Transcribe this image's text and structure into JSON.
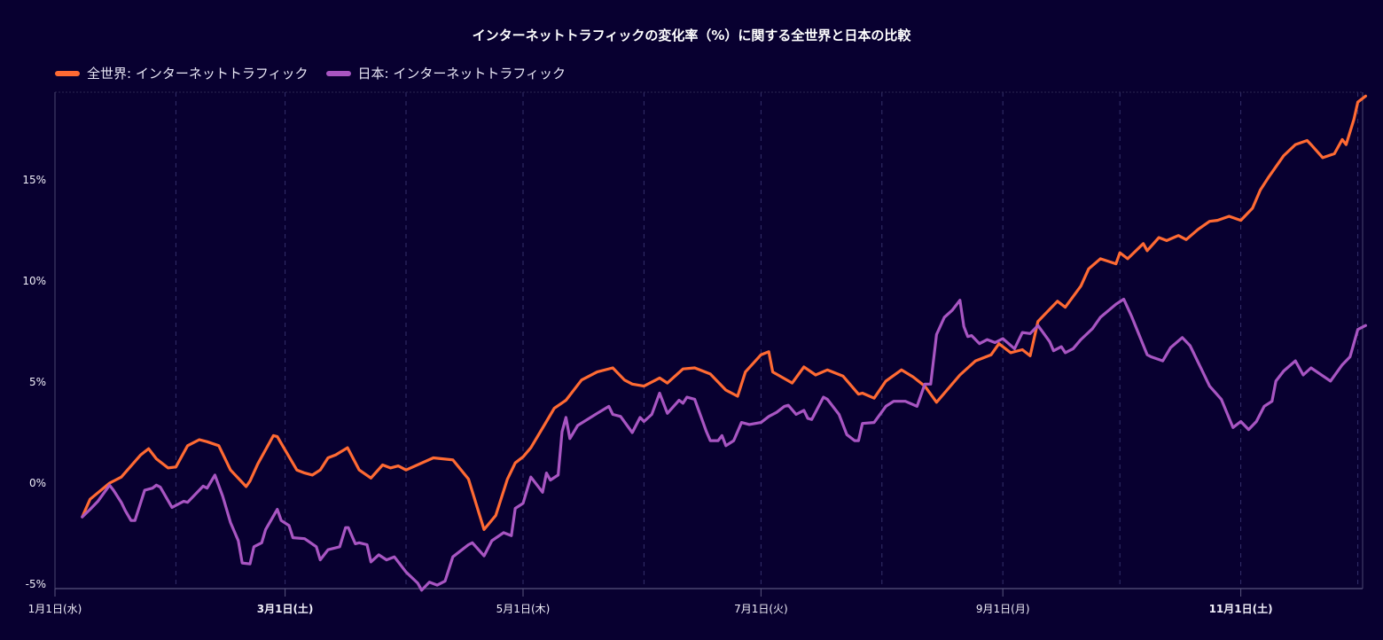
{
  "chart_data": {
    "type": "line",
    "title": "インターネットトラフィックの変化率（%）に関する全世界と日本の比較",
    "xlabel": "",
    "ylabel": "",
    "x_unit": "day of year (0 = 1月1日)",
    "xlim": [
      0,
      336
    ],
    "ylim": [
      -5.2,
      19.3
    ],
    "y_ticks": [
      {
        "value": -5,
        "label": "-5%"
      },
      {
        "value": 0,
        "label": "0%"
      },
      {
        "value": 5,
        "label": "5%"
      },
      {
        "value": 10,
        "label": "10%"
      },
      {
        "value": 15,
        "label": "15%"
      }
    ],
    "x_ticks": [
      {
        "day": 0,
        "label": "1月1日(水)",
        "bold": false
      },
      {
        "day": 59,
        "label": "3月1日(土)",
        "bold": true
      },
      {
        "day": 120,
        "label": "5月1日(木)",
        "bold": false
      },
      {
        "day": 181,
        "label": "7月1日(火)",
        "bold": false
      },
      {
        "day": 243,
        "label": "9月1日(月)",
        "bold": false
      },
      {
        "day": 304,
        "label": "11月1日(土)",
        "bold": true
      }
    ],
    "month_grid_days": [
      31,
      59,
      90,
      120,
      151,
      181,
      212,
      243,
      273,
      304,
      334
    ],
    "grid": "vertical-dashed",
    "legend_position": "top-left",
    "series": [
      {
        "name": "全世界: インターネットトラフィック",
        "color": "#ff6a33",
        "points": [
          [
            7,
            -1.67
          ],
          [
            9,
            -0.8
          ],
          [
            14,
            0
          ],
          [
            17,
            0.3
          ],
          [
            22,
            1.4
          ],
          [
            24,
            1.7
          ],
          [
            26,
            1.2
          ],
          [
            29,
            0.75
          ],
          [
            31,
            0.8
          ],
          [
            34,
            1.85
          ],
          [
            37,
            2.15
          ],
          [
            39,
            2.05
          ],
          [
            42,
            1.85
          ],
          [
            45,
            0.65
          ],
          [
            49,
            -0.17
          ],
          [
            50,
            0.1
          ],
          [
            52,
            0.95
          ],
          [
            56,
            2.35
          ],
          [
            57,
            2.3
          ],
          [
            62,
            0.65
          ],
          [
            64,
            0.5
          ],
          [
            66,
            0.4
          ],
          [
            68,
            0.65
          ],
          [
            70,
            1.25
          ],
          [
            72,
            1.4
          ],
          [
            75,
            1.75
          ],
          [
            78,
            0.65
          ],
          [
            81,
            0.25
          ],
          [
            84,
            0.9
          ],
          [
            86,
            0.75
          ],
          [
            88,
            0.85
          ],
          [
            90,
            0.65
          ],
          [
            97,
            1.25
          ],
          [
            102,
            1.15
          ],
          [
            106,
            0.2
          ],
          [
            110,
            -2.3
          ],
          [
            113,
            -1.6
          ],
          [
            116,
            0.2
          ],
          [
            118,
            1.0
          ],
          [
            120,
            1.3
          ],
          [
            122,
            1.75
          ],
          [
            126,
            3.05
          ],
          [
            128,
            3.7
          ],
          [
            131,
            4.1
          ],
          [
            135,
            5.1
          ],
          [
            139,
            5.5
          ],
          [
            143,
            5.7
          ],
          [
            146,
            5.1
          ],
          [
            148,
            4.9
          ],
          [
            151,
            4.8
          ],
          [
            155,
            5.2
          ],
          [
            157,
            4.95
          ],
          [
            161,
            5.65
          ],
          [
            164,
            5.7
          ],
          [
            168,
            5.4
          ],
          [
            172,
            4.6
          ],
          [
            175,
            4.3
          ],
          [
            177,
            5.5
          ],
          [
            181,
            6.35
          ],
          [
            183,
            6.5
          ],
          [
            184,
            5.5
          ],
          [
            189,
            4.95
          ],
          [
            192,
            5.75
          ],
          [
            195,
            5.35
          ],
          [
            198,
            5.6
          ],
          [
            202,
            5.3
          ],
          [
            206,
            4.4
          ],
          [
            207,
            4.45
          ],
          [
            210,
            4.2
          ],
          [
            213,
            5.05
          ],
          [
            217,
            5.6
          ],
          [
            220,
            5.25
          ],
          [
            223,
            4.8
          ],
          [
            226,
            4.0
          ],
          [
            232,
            5.35
          ],
          [
            236,
            6.05
          ],
          [
            240,
            6.35
          ],
          [
            242,
            6.9
          ],
          [
            245,
            6.45
          ],
          [
            248,
            6.6
          ],
          [
            250,
            6.3
          ],
          [
            252,
            8.0
          ],
          [
            257,
            9.0
          ],
          [
            259,
            8.7
          ],
          [
            263,
            9.75
          ],
          [
            265,
            10.6
          ],
          [
            268,
            11.1
          ],
          [
            272,
            10.85
          ],
          [
            273,
            11.4
          ],
          [
            275,
            11.1
          ],
          [
            279,
            11.85
          ],
          [
            280,
            11.5
          ],
          [
            283,
            12.15
          ],
          [
            285,
            12.0
          ],
          [
            288,
            12.25
          ],
          [
            290,
            12.05
          ],
          [
            293,
            12.55
          ],
          [
            296,
            12.95
          ],
          [
            298,
            13.0
          ],
          [
            301,
            13.2
          ],
          [
            304,
            13.0
          ],
          [
            307,
            13.6
          ],
          [
            309,
            14.5
          ],
          [
            311,
            15.1
          ],
          [
            315,
            16.2
          ],
          [
            318,
            16.75
          ],
          [
            321,
            16.95
          ],
          [
            322,
            16.75
          ],
          [
            325,
            16.1
          ],
          [
            328,
            16.3
          ],
          [
            330,
            17.0
          ],
          [
            331,
            16.75
          ],
          [
            333,
            18.0
          ],
          [
            334,
            18.85
          ],
          [
            336,
            19.15
          ]
        ]
      },
      {
        "name": "日本: インターネットトラフィック",
        "color": "#a855c2",
        "points": [
          [
            7,
            -1.67
          ],
          [
            9,
            -1.3
          ],
          [
            11,
            -0.9
          ],
          [
            14,
            -0.1
          ],
          [
            15,
            -0.35
          ],
          [
            17,
            -0.95
          ],
          [
            18,
            -1.35
          ],
          [
            19.5,
            -1.85
          ],
          [
            20.5,
            -1.85
          ],
          [
            23,
            -0.35
          ],
          [
            25,
            -0.25
          ],
          [
            26,
            -0.1
          ],
          [
            27,
            -0.2
          ],
          [
            30,
            -1.2
          ],
          [
            33,
            -0.9
          ],
          [
            34,
            -0.95
          ],
          [
            38,
            -0.15
          ],
          [
            39,
            -0.25
          ],
          [
            41,
            0.4
          ],
          [
            43,
            -0.65
          ],
          [
            45,
            -1.95
          ],
          [
            47,
            -2.85
          ],
          [
            48,
            -3.95
          ],
          [
            50,
            -4.0
          ],
          [
            51,
            -3.15
          ],
          [
            53,
            -2.95
          ],
          [
            54,
            -2.3
          ],
          [
            57,
            -1.3
          ],
          [
            58,
            -1.85
          ],
          [
            60,
            -2.1
          ],
          [
            61,
            -2.7
          ],
          [
            64,
            -2.75
          ],
          [
            67,
            -3.15
          ],
          [
            68,
            -3.8
          ],
          [
            70,
            -3.3
          ],
          [
            73,
            -3.15
          ],
          [
            74.5,
            -2.2
          ],
          [
            75.2,
            -2.2
          ],
          [
            77,
            -3.0
          ],
          [
            78,
            -2.95
          ],
          [
            80,
            -3.05
          ],
          [
            81,
            -3.9
          ],
          [
            83,
            -3.55
          ],
          [
            85,
            -3.8
          ],
          [
            87,
            -3.65
          ],
          [
            90,
            -4.4
          ],
          [
            93,
            -4.95
          ],
          [
            94,
            -5.3
          ],
          [
            96,
            -4.9
          ],
          [
            98,
            -5.05
          ],
          [
            100,
            -4.85
          ],
          [
            102,
            -3.65
          ],
          [
            106,
            -3.05
          ],
          [
            107,
            -2.95
          ],
          [
            110,
            -3.6
          ],
          [
            112,
            -2.85
          ],
          [
            115,
            -2.45
          ],
          [
            117,
            -2.6
          ],
          [
            118,
            -1.25
          ],
          [
            120,
            -1.0
          ],
          [
            122,
            0.3
          ],
          [
            125,
            -0.45
          ],
          [
            126,
            0.5
          ],
          [
            127,
            0.15
          ],
          [
            129,
            0.4
          ],
          [
            130,
            2.55
          ],
          [
            131,
            3.25
          ],
          [
            132,
            2.2
          ],
          [
            134,
            2.85
          ],
          [
            139,
            3.45
          ],
          [
            142,
            3.8
          ],
          [
            143,
            3.4
          ],
          [
            145,
            3.3
          ],
          [
            148,
            2.5
          ],
          [
            150,
            3.25
          ],
          [
            151,
            3.05
          ],
          [
            153,
            3.4
          ],
          [
            155,
            4.45
          ],
          [
            157,
            3.45
          ],
          [
            160,
            4.1
          ],
          [
            161,
            3.95
          ],
          [
            162,
            4.25
          ],
          [
            164,
            4.15
          ],
          [
            167,
            2.55
          ],
          [
            168,
            2.1
          ],
          [
            170,
            2.1
          ],
          [
            171,
            2.35
          ],
          [
            172,
            1.85
          ],
          [
            174,
            2.1
          ],
          [
            176,
            3.0
          ],
          [
            178,
            2.9
          ],
          [
            181,
            3.0
          ],
          [
            183,
            3.3
          ],
          [
            185,
            3.5
          ],
          [
            187,
            3.8
          ],
          [
            188,
            3.85
          ],
          [
            190,
            3.4
          ],
          [
            192,
            3.6
          ],
          [
            193,
            3.2
          ],
          [
            194,
            3.15
          ],
          [
            197,
            4.25
          ],
          [
            198,
            4.15
          ],
          [
            201,
            3.4
          ],
          [
            203,
            2.4
          ],
          [
            205,
            2.1
          ],
          [
            206,
            2.1
          ],
          [
            207,
            2.95
          ],
          [
            210,
            3.0
          ],
          [
            213,
            3.8
          ],
          [
            215,
            4.05
          ],
          [
            218,
            4.05
          ],
          [
            221,
            3.8
          ],
          [
            223,
            4.9
          ],
          [
            224.5,
            4.9
          ],
          [
            226,
            7.35
          ],
          [
            228,
            8.2
          ],
          [
            230,
            8.55
          ],
          [
            232,
            9.05
          ],
          [
            233,
            7.75
          ],
          [
            234,
            7.25
          ],
          [
            235,
            7.3
          ],
          [
            237,
            6.9
          ],
          [
            239,
            7.1
          ],
          [
            241,
            6.95
          ],
          [
            243,
            7.15
          ],
          [
            246,
            6.65
          ],
          [
            248,
            7.45
          ],
          [
            250,
            7.4
          ],
          [
            252,
            7.8
          ],
          [
            255,
            7.0
          ],
          [
            256,
            6.55
          ],
          [
            258,
            6.75
          ],
          [
            259,
            6.45
          ],
          [
            261,
            6.65
          ],
          [
            263,
            7.1
          ],
          [
            266,
            7.65
          ],
          [
            268,
            8.2
          ],
          [
            272,
            8.85
          ],
          [
            274,
            9.1
          ],
          [
            276,
            8.25
          ],
          [
            280,
            6.35
          ],
          [
            281,
            6.25
          ],
          [
            284,
            6.05
          ],
          [
            286,
            6.7
          ],
          [
            289,
            7.2
          ],
          [
            291,
            6.8
          ],
          [
            294,
            5.6
          ],
          [
            296,
            4.8
          ],
          [
            299,
            4.15
          ],
          [
            302,
            2.75
          ],
          [
            304,
            3.05
          ],
          [
            306,
            2.65
          ],
          [
            308,
            3.05
          ],
          [
            310,
            3.8
          ],
          [
            312,
            4.05
          ],
          [
            313,
            5.05
          ],
          [
            315,
            5.55
          ],
          [
            318,
            6.05
          ],
          [
            320,
            5.35
          ],
          [
            322,
            5.7
          ],
          [
            327,
            5.05
          ],
          [
            330,
            5.85
          ],
          [
            332,
            6.25
          ],
          [
            334,
            7.6
          ],
          [
            336,
            7.8
          ]
        ]
      }
    ]
  }
}
